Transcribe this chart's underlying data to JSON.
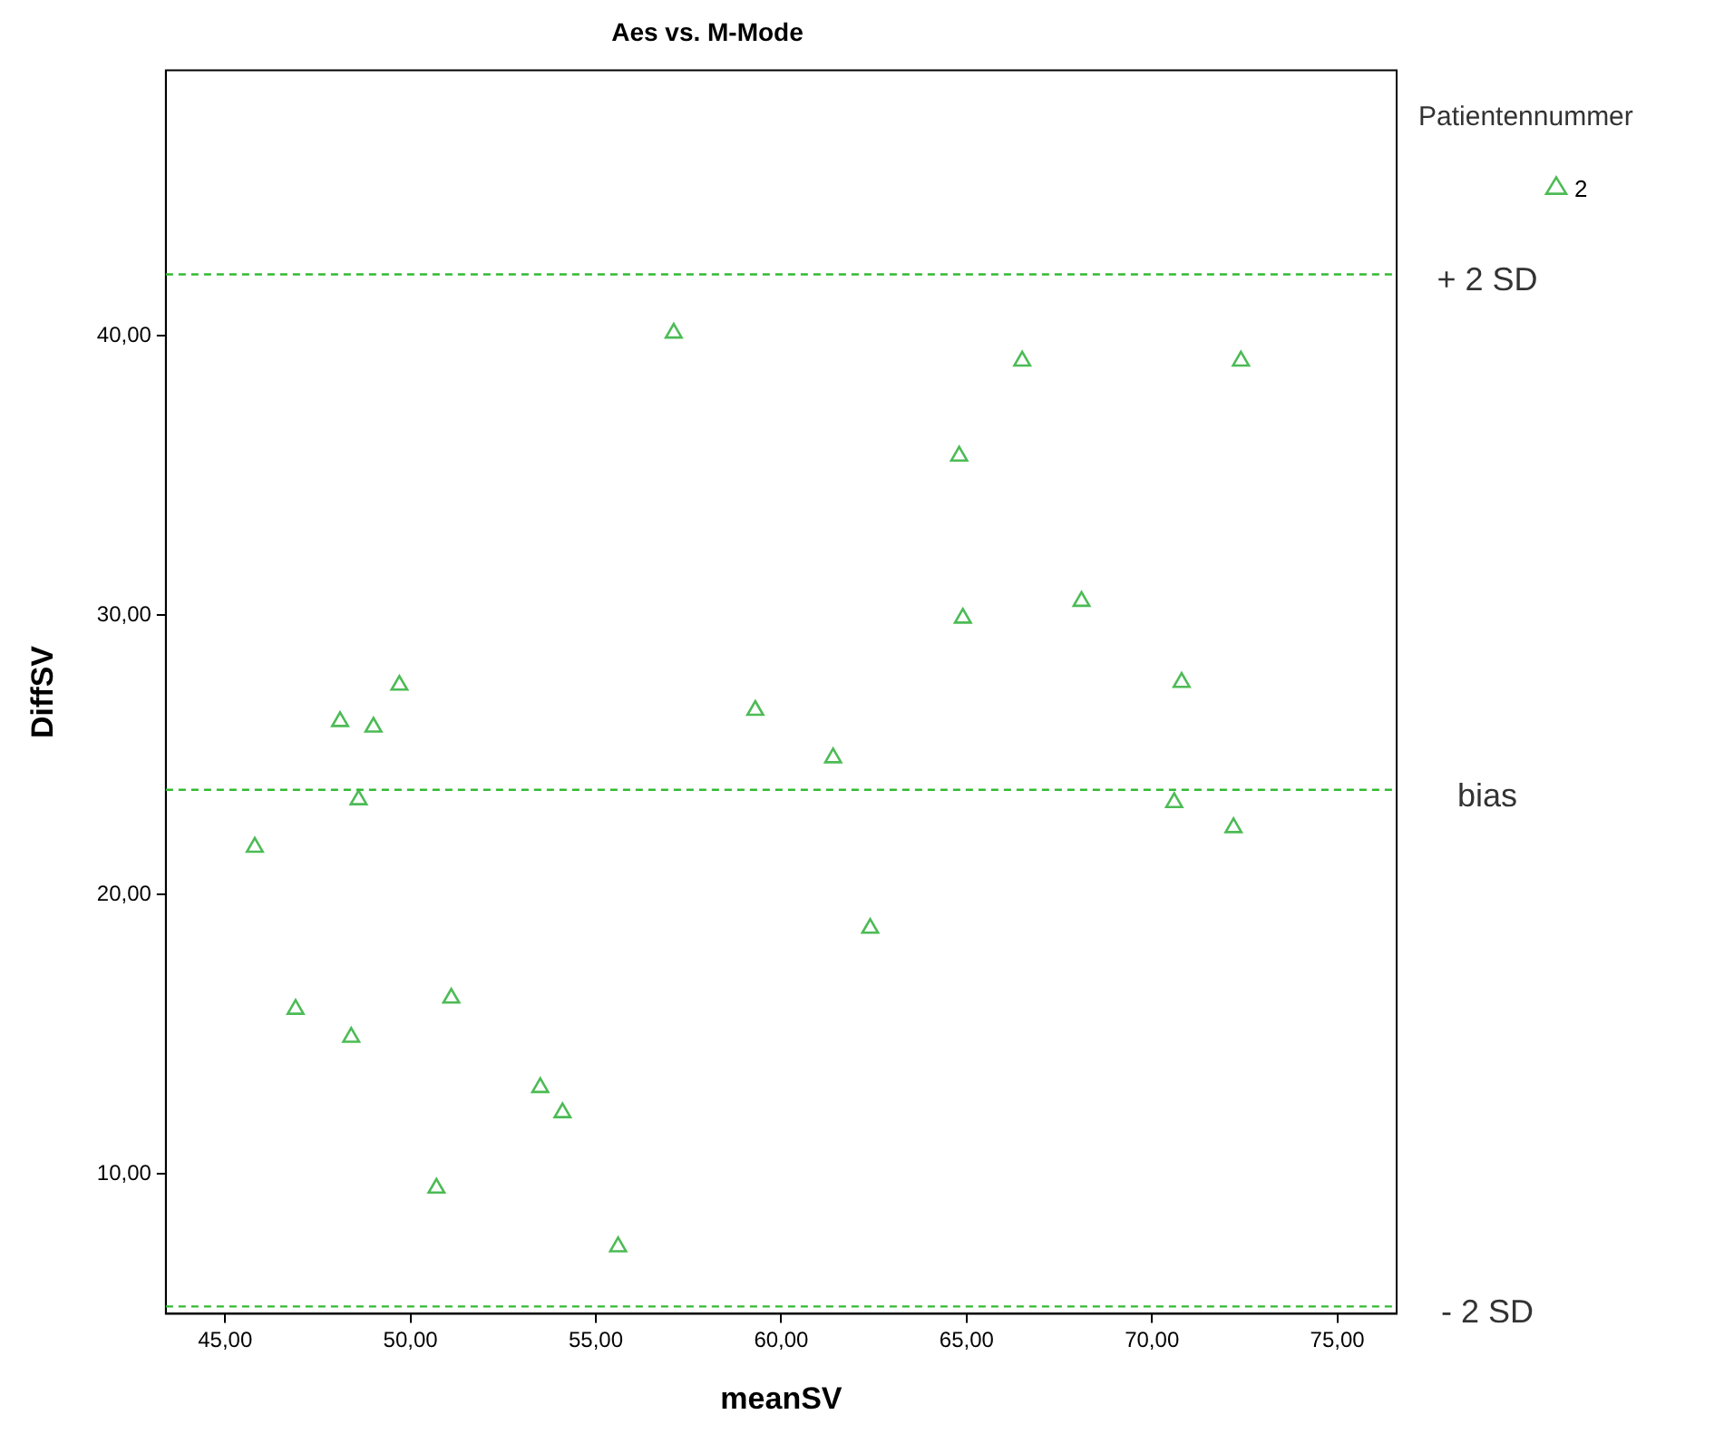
{
  "chart_data": {
    "type": "scatter",
    "title": "Aes vs. M-Mode",
    "xlabel": "meanSV",
    "ylabel": "DiffSV",
    "legend_title": "Patientennummer",
    "legend": "top right",
    "marker": "triangle",
    "grid": false,
    "xlim": [
      43.4,
      76.6
    ],
    "xticks": [
      {
        "value": 45,
        "label": "45,00"
      },
      {
        "value": 50,
        "label": "50,00"
      },
      {
        "value": 55,
        "label": "55,00"
      },
      {
        "value": 60,
        "label": "60,00"
      },
      {
        "value": 65,
        "label": "65,00"
      },
      {
        "value": 70,
        "label": "70,00"
      },
      {
        "value": 75,
        "label": "75,00"
      }
    ],
    "ylim": [
      5.0,
      49.5
    ],
    "yticks": [
      {
        "value": 10,
        "label": "10,00"
      },
      {
        "value": 20,
        "label": "20,00"
      },
      {
        "value": 30,
        "label": "30,00"
      },
      {
        "value": 40,
        "label": "40,00"
      }
    ],
    "series": [
      {
        "name": "2",
        "color": "#4cbb55",
        "x": [
          57.1,
          66.5,
          72.4,
          64.8,
          68.1,
          64.9,
          48.1,
          49.0,
          49.7,
          59.3,
          61.4,
          70.8,
          48.6,
          70.6,
          72.2,
          45.8,
          62.4,
          46.9,
          51.1,
          48.4,
          53.5,
          54.1,
          50.7,
          55.6
        ],
        "values": [
          40.1,
          39.1,
          39.1,
          35.7,
          30.5,
          29.9,
          26.2,
          26.0,
          27.5,
          26.6,
          24.9,
          27.6,
          23.4,
          23.3,
          22.4,
          21.7,
          18.8,
          15.9,
          16.3,
          14.9,
          13.1,
          12.2,
          9.5,
          7.4
        ]
      }
    ],
    "ref_lines": [
      {
        "axis": "y",
        "value": 42.2,
        "label": "+ 2 SD",
        "color": "#33bb33",
        "line_style": "dashed"
      },
      {
        "axis": "y",
        "value": 23.75,
        "label": "bias",
        "color": "#33bb33",
        "line_style": "dashed"
      },
      {
        "axis": "y",
        "value": 5.26,
        "label": "- 2 SD",
        "color": "#33bb33",
        "line_style": "dashed"
      }
    ]
  }
}
